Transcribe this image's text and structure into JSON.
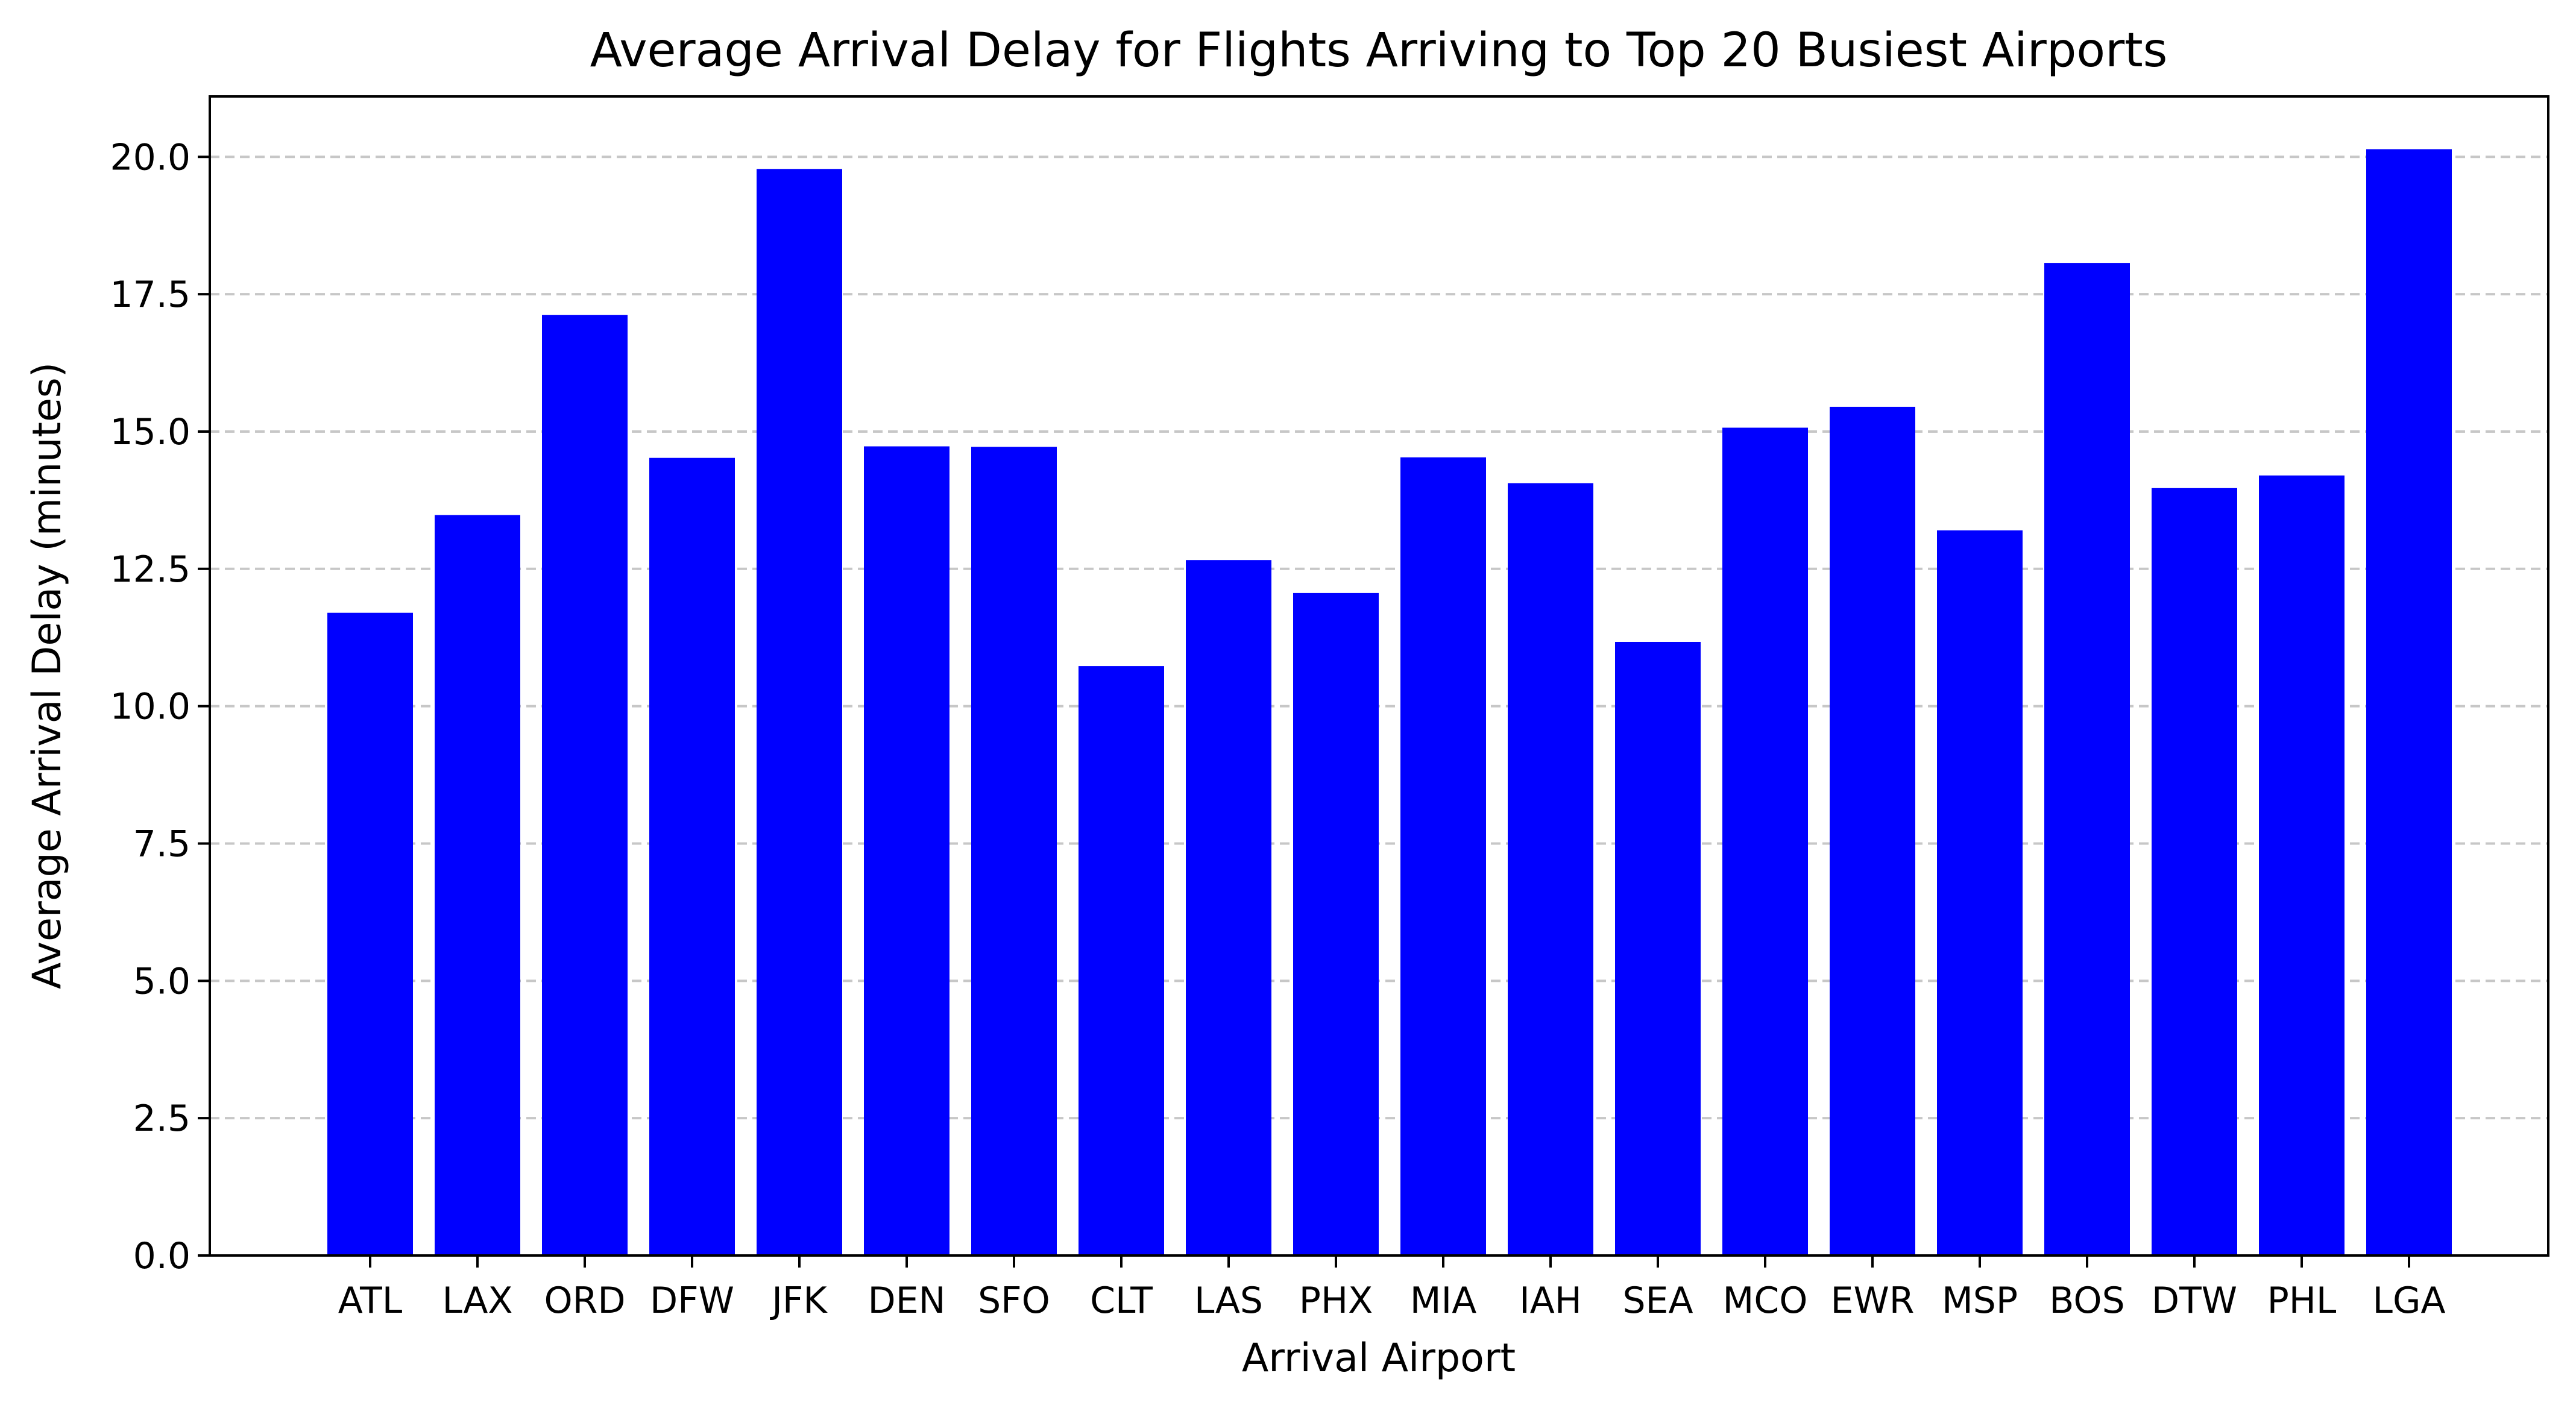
{
  "chart_data": {
    "type": "bar",
    "title": "Average Arrival Delay for Flights Arriving to Top 20 Busiest Airports",
    "xlabel": "Arrival Airport",
    "ylabel": "Average Arrival Delay (minutes)",
    "categories": [
      "ATL",
      "LAX",
      "ORD",
      "DFW",
      "JFK",
      "DEN",
      "SFO",
      "CLT",
      "LAS",
      "PHX",
      "MIA",
      "IAH",
      "SEA",
      "MCO",
      "EWR",
      "MSP",
      "BOS",
      "DTW",
      "PHL",
      "LGA"
    ],
    "values": [
      11.7,
      13.48,
      17.12,
      14.52,
      19.78,
      14.73,
      14.72,
      10.73,
      12.66,
      12.06,
      14.53,
      14.06,
      11.17,
      15.07,
      15.45,
      13.2,
      18.07,
      13.97,
      14.2,
      20.14
    ],
    "ylim": [
      0,
      21.1
    ],
    "yticks": [
      0,
      2.5,
      5,
      7.5,
      10,
      12.5,
      15,
      17.5,
      20
    ],
    "ytick_labels": [
      "0.0",
      "2.5",
      "5.0",
      "7.5",
      "10.0",
      "12.5",
      "15.0",
      "17.5",
      "20.0"
    ],
    "grid": "y-dashed",
    "bar_color": "#0000ff"
  }
}
